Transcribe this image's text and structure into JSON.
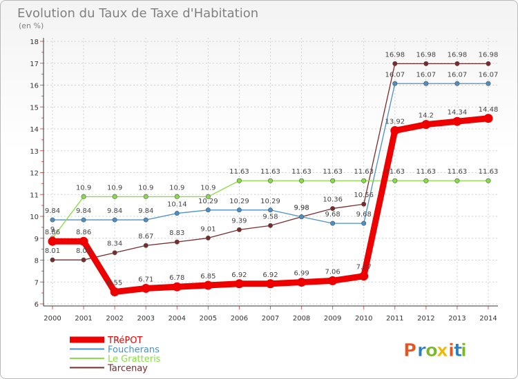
{
  "chart_data": {
    "type": "line",
    "title": "Evolution du Taux de Taxe d'Habitation",
    "subtitle": "(en %)",
    "x": [
      "2000",
      "2001",
      "2002",
      "2003",
      "2004",
      "2005",
      "2006",
      "2007",
      "2008",
      "2009",
      "2010",
      "2011",
      "2012",
      "2013",
      "2014"
    ],
    "ylim": [
      6,
      18
    ],
    "yticks": [
      6,
      7,
      8,
      9,
      10,
      11,
      12,
      13,
      14,
      15,
      16,
      17,
      18
    ],
    "grid": true,
    "legend_position": "bottom-left",
    "series": [
      {
        "name": "TRéPOT",
        "color": "#ee0000",
        "values": [
          8.86,
          8.86,
          6.55,
          6.71,
          6.78,
          6.85,
          6.92,
          6.92,
          6.99,
          7.06,
          7.27,
          13.92,
          14.2,
          14.34,
          14.48
        ],
        "labels": [
          "8.86",
          "8.86",
          "6.55",
          "6.71",
          "6.78",
          "6.85",
          "6.92",
          "6.92",
          "6.99",
          "7.06",
          "7.27",
          "13.92",
          "14.2",
          "14.34",
          "14.48"
        ]
      },
      {
        "name": "Foucherans",
        "color": "#4a8fc9",
        "values": [
          9.84,
          9.84,
          9.84,
          9.84,
          10.14,
          10.29,
          10.29,
          10.29,
          9.98,
          9.68,
          9.68,
          16.07,
          16.07,
          16.07,
          16.07
        ],
        "labels": [
          "9.84",
          "9.84",
          "9.84",
          "9.84",
          "10.14",
          "10.29",
          "10.29",
          "10.29",
          "9.98",
          "9.68",
          "9.68",
          "16.07",
          "16.07",
          "16.07",
          "16.07"
        ]
      },
      {
        "name": "Le Gratteris",
        "color": "#88dd44",
        "values": [
          9,
          10.9,
          10.9,
          10.9,
          10.9,
          10.9,
          11.63,
          11.63,
          11.63,
          11.63,
          11.63,
          11.63,
          11.63,
          11.63,
          11.63
        ],
        "labels": [
          "9",
          "10.9",
          "10.9",
          "10.9",
          "10.9",
          "10.9",
          "11.63",
          "11.63",
          "11.63",
          "11.63",
          "11.63",
          "11.63",
          "11.63",
          "11.63",
          "11.63"
        ]
      },
      {
        "name": "Tarcenay",
        "color": "#7a2a2a",
        "values": [
          8.01,
          8.01,
          8.34,
          8.67,
          8.83,
          9.01,
          9.39,
          9.58,
          9.98,
          10.36,
          10.56,
          16.98,
          16.98,
          16.98,
          16.98
        ],
        "labels": [
          "8.01",
          "8.01",
          "8.34",
          "8.67",
          "8.83",
          "9.01",
          "9.39",
          "9.58",
          "9.98",
          "10.36",
          "10.56",
          "16.98",
          "16.98",
          "16.98",
          "16.98"
        ]
      }
    ]
  },
  "logo": {
    "text": "Proxiti",
    "colors": [
      "#e8541e",
      "#2a7fc0",
      "#7ab829",
      "#f0b800"
    ]
  }
}
